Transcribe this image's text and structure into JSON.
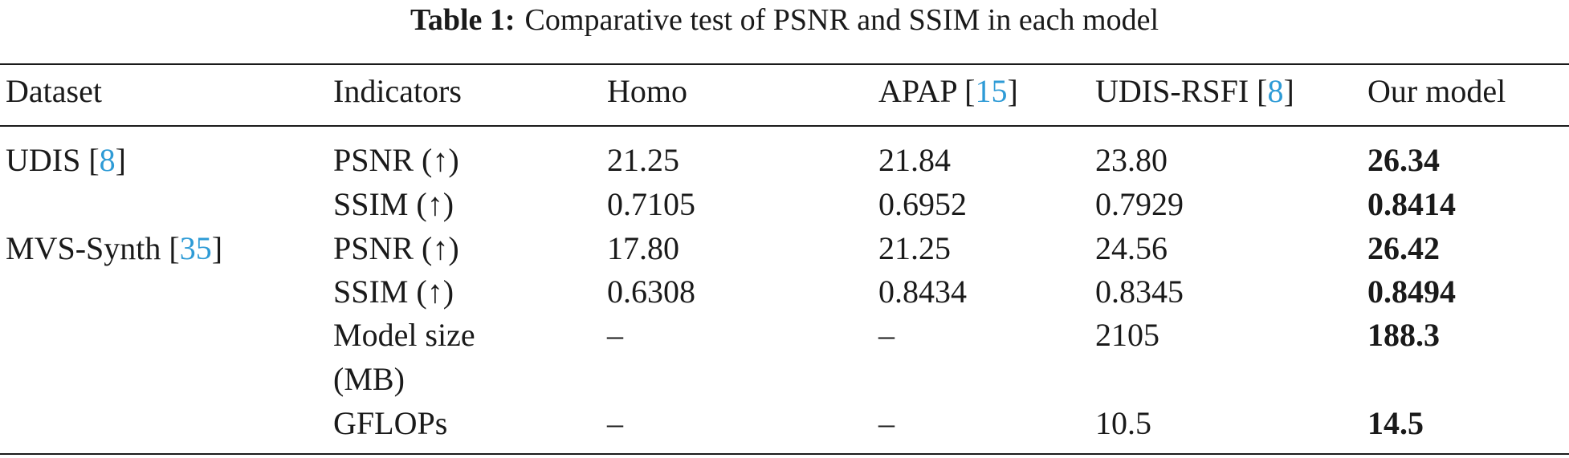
{
  "caption": {
    "label": "Table 1:",
    "text": "Comparative test of PSNR and SSIM in each model"
  },
  "header": {
    "dataset": "Dataset",
    "indicators": "Indicators",
    "homo": "Homo",
    "apap": "APAP",
    "apap_cite": "15",
    "udis_rsfi": "UDIS-RSFI",
    "udis_rsfi_cite": "8",
    "ours": "Our model"
  },
  "datasets": {
    "udis": "UDIS",
    "udis_cite": "8",
    "mvs": "MVS-Synth",
    "mvs_cite": "35"
  },
  "rows": [
    {
      "indicator": "PSNR (↑)",
      "homo": "21.25",
      "apap": "21.84",
      "udis_rsfi": "23.80",
      "ours": "26.34"
    },
    {
      "indicator": "SSIM (↑)",
      "homo": "0.7105",
      "apap": "0.6952",
      "udis_rsfi": "0.7929",
      "ours": "0.8414"
    },
    {
      "indicator": "PSNR (↑)",
      "homo": "17.80",
      "apap": "21.25",
      "udis_rsfi": "24.56",
      "ours": "26.42"
    },
    {
      "indicator": "SSIM (↑)",
      "homo": "0.6308",
      "apap": "0.8434",
      "udis_rsfi": "0.8345",
      "ours": "0.8494"
    },
    {
      "indicator": "Model size",
      "indicator_line2": "(MB)",
      "homo": "–",
      "apap": "–",
      "udis_rsfi": "2105",
      "ours": "188.3"
    },
    {
      "indicator": "GFLOPs",
      "homo": "–",
      "apap": "–",
      "udis_rsfi": "10.5",
      "ours": "14.5"
    }
  ]
}
